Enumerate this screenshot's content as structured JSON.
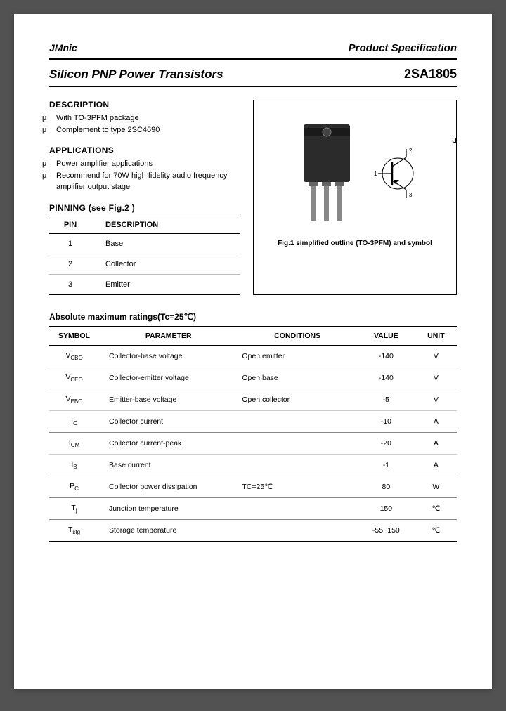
{
  "header": {
    "brand": "JMnic",
    "spec_label": "Product Specification"
  },
  "title": {
    "left": "Silicon PNP Power Transistors",
    "right": "2SA1805"
  },
  "description": {
    "heading": "DESCRIPTION",
    "items": [
      "With TO-3PFM package",
      "Complement to type 2SC4690"
    ]
  },
  "applications": {
    "heading": "APPLICATIONS",
    "items": [
      "Power amplifier applications",
      "Recommend for 70W high fidelity audio frequency amplifier output stage"
    ]
  },
  "pinning": {
    "heading": "PINNING (see Fig.2 )",
    "col_pin": "PIN",
    "col_desc": "DESCRIPTION",
    "rows": [
      {
        "pin": "1",
        "desc": "Base"
      },
      {
        "pin": "2",
        "desc": "Collector"
      },
      {
        "pin": "3",
        "desc": "Emitter"
      }
    ]
  },
  "figure": {
    "caption": "Fig.1 simplified outline (TO-3PFM) and symbol",
    "pin_labels": {
      "p1": "1",
      "p2": "2",
      "p3": "3"
    }
  },
  "ratings": {
    "heading": "Absolute maximum ratings(Tc=25℃)",
    "cols": {
      "symbol": "SYMBOL",
      "parameter": "PARAMETER",
      "conditions": "CONDITIONS",
      "value": "VALUE",
      "unit": "UNIT"
    },
    "rows": [
      {
        "sym": "V",
        "sub": "CBO",
        "param": "Collector-base voltage",
        "cond": "Open emitter",
        "val": "-140",
        "unit": "V",
        "sep": false
      },
      {
        "sym": "V",
        "sub": "CEO",
        "param": "Collector-emitter voltage",
        "cond": "Open base",
        "val": "-140",
        "unit": "V",
        "sep": false
      },
      {
        "sym": "V",
        "sub": "EBO",
        "param": "Emitter-base voltage",
        "cond": "Open collector",
        "val": "-5",
        "unit": "V",
        "sep": false
      },
      {
        "sym": "I",
        "sub": "C",
        "param": "Collector current",
        "cond": "",
        "val": "-10",
        "unit": "A",
        "sep": true
      },
      {
        "sym": "I",
        "sub": "CM",
        "param": "Collector current-peak",
        "cond": "",
        "val": "-20",
        "unit": "A",
        "sep": false
      },
      {
        "sym": "I",
        "sub": "B",
        "param": "Base current",
        "cond": "",
        "val": "-1",
        "unit": "A",
        "sep": true
      },
      {
        "sym": "P",
        "sub": "C",
        "param": "Collector power dissipation",
        "cond": "TC=25℃",
        "val": "80",
        "unit": "W",
        "sep": true
      },
      {
        "sym": "T",
        "sub": "j",
        "param": "Junction temperature",
        "cond": "",
        "val": "150",
        "unit": "℃",
        "sep": true
      },
      {
        "sym": "T",
        "sub": "stg",
        "param": "Storage temperature",
        "cond": "",
        "val": "-55~150",
        "unit": "℃",
        "sep": false
      }
    ]
  },
  "colors": {
    "page_bg": "#ffffff",
    "body_bg": "#525252",
    "text": "#000000",
    "rule": "#000000",
    "row_border": "#cccccc",
    "component_body": "#2b2b2b"
  },
  "bullet_glyph": "μ"
}
